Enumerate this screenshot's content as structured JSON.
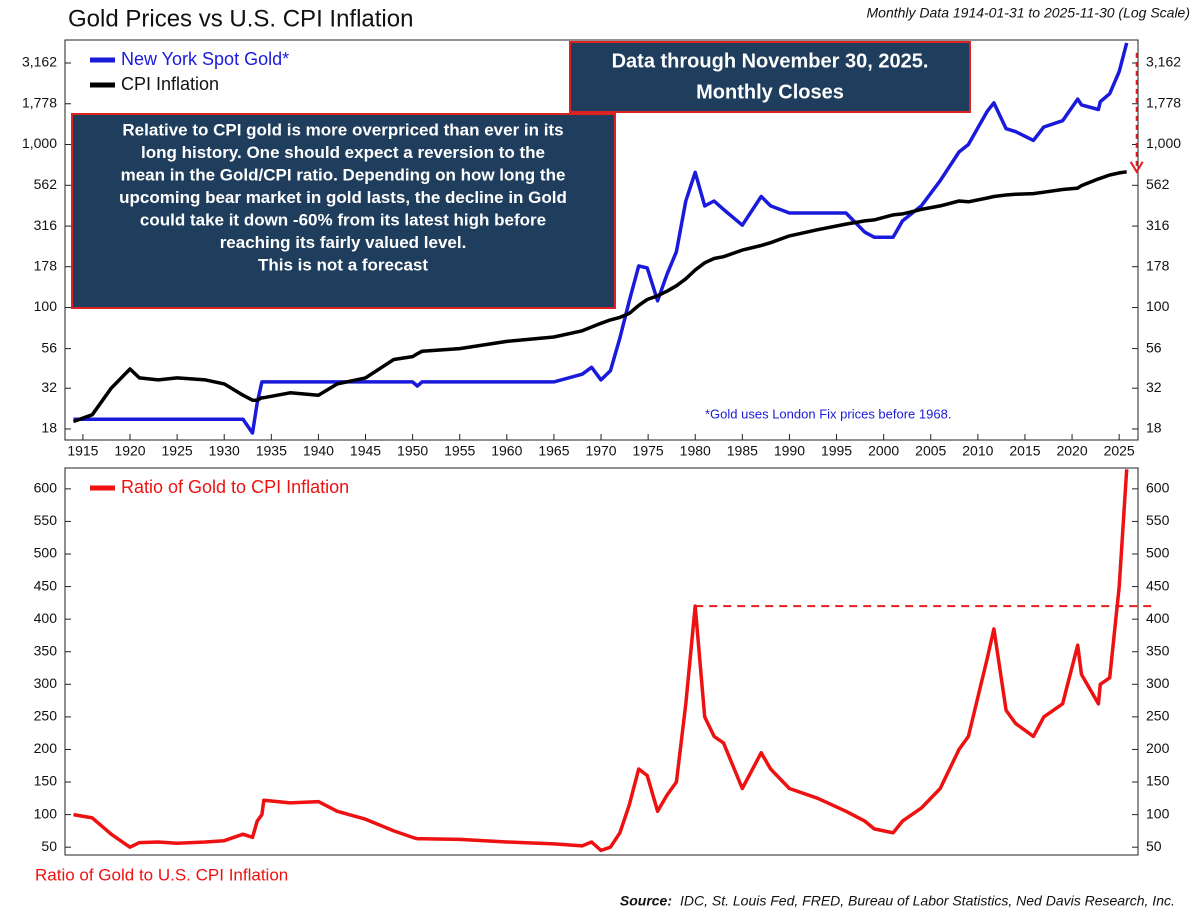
{
  "chart_data": [
    {
      "type": "line",
      "title": "Gold Prices vs U.S. CPI Inflation",
      "subtitle": "Monthly Data 1914-01-31 to 2025-11-30 (Log Scale)",
      "log_scale": true,
      "grid": false,
      "x": [
        1914,
        1916,
        1918,
        1920,
        1921,
        1923,
        1925,
        1928,
        1930,
        1932,
        1933,
        1933.5,
        1934,
        1934.2,
        1937,
        1940,
        1942,
        1945,
        1948,
        1950,
        1950.5,
        1951,
        1955,
        1960,
        1965,
        1968,
        1969,
        1970,
        1971,
        1972,
        1973,
        1974,
        1974.9,
        1976,
        1977,
        1978,
        1979,
        1980,
        1981,
        1982,
        1983,
        1985,
        1987,
        1988,
        1990,
        1993,
        1996,
        1998,
        1999,
        2001,
        2002,
        2004,
        2006,
        2008,
        2009,
        2011,
        2011.7,
        2013,
        2014,
        2015.9,
        2017,
        2019,
        2020.6,
        2021,
        2022.8,
        2023,
        2024,
        2025,
        2025.8
      ],
      "xlim": [
        1913.1,
        2027
      ],
      "xticks": [
        1915,
        1920,
        1925,
        1930,
        1935,
        1940,
        1945,
        1950,
        1955,
        1960,
        1965,
        1970,
        1975,
        1980,
        1985,
        1990,
        1995,
        2000,
        2005,
        2010,
        2015,
        2020,
        2025
      ],
      "ylim": [
        15.4,
        4375
      ],
      "yticks": [
        18,
        32,
        56,
        100,
        178,
        316,
        562,
        {
          "value": 1000,
          "label": "1,000"
        },
        {
          "value": 1778,
          "label": "1,778"
        },
        {
          "value": 3162,
          "label": "3,162"
        }
      ],
      "series": [
        {
          "name": "New York Spot Gold*",
          "color": "#1a1adb",
          "values": [
            20.67,
            20.67,
            20.67,
            20.67,
            20.67,
            20.67,
            20.67,
            20.67,
            20.67,
            20.67,
            17,
            26,
            35,
            35,
            35,
            35,
            35,
            35,
            35,
            35,
            33,
            35,
            35,
            35,
            35,
            39,
            43,
            36,
            41,
            65,
            110,
            180,
            175,
            110,
            160,
            220,
            450,
            675,
            420,
            450,
            400,
            320,
            480,
            420,
            380,
            380,
            380,
            290,
            270,
            270,
            340,
            420,
            600,
            900,
            1000,
            1600,
            1800,
            1250,
            1200,
            1060,
            1280,
            1400,
            1900,
            1750,
            1640,
            1830,
            2050,
            2800,
            4200
          ]
        },
        {
          "name": "CPI Inflation",
          "color": "#000000",
          "values": [
            20,
            22,
            32,
            42,
            37,
            36,
            37,
            36,
            34,
            29,
            27,
            27,
            28,
            28,
            30,
            29,
            34,
            37,
            48,
            50,
            52,
            54,
            56,
            62,
            66,
            72,
            76,
            80,
            84,
            87,
            92,
            103,
            112,
            118,
            126,
            136,
            150,
            170,
            188,
            200,
            205,
            225,
            240,
            250,
            275,
            300,
            325,
            340,
            345,
            370,
            375,
            400,
            420,
            450,
            445,
            470,
            480,
            490,
            495,
            500,
            510,
            530,
            540,
            560,
            615,
            620,
            650,
            670,
            680
          ]
        }
      ],
      "annotations": {
        "data_box": [
          "Data through November 30, 2025.",
          "Monthly Closes"
        ],
        "comment_box": [
          "Relative to CPI gold is more overpriced than ever in its",
          "long history.  One should expect a reversion to the",
          "mean in the Gold/CPI ratio. Depending on how long the",
          "upcoming bear market in gold lasts, the decline in Gold",
          "could take it down -60% from its latest high before",
          "reaching its fairly valued level.",
          "This is not a forecast"
        ],
        "note": "*Gold uses London Fix prices before 1968."
      }
    },
    {
      "type": "line",
      "grid": false,
      "x": [
        1914,
        1916,
        1918,
        1920,
        1921,
        1923,
        1925,
        1928,
        1930,
        1932,
        1933,
        1933.5,
        1934,
        1934.2,
        1937,
        1940,
        1942,
        1945,
        1948,
        1950,
        1950.5,
        1951,
        1955,
        1960,
        1965,
        1968,
        1969,
        1970,
        1971,
        1972,
        1973,
        1974,
        1974.9,
        1976,
        1977,
        1978,
        1979,
        1980,
        1981,
        1982,
        1983,
        1985,
        1987,
        1988,
        1990,
        1993,
        1996,
        1998,
        1999,
        2001,
        2002,
        2004,
        2006,
        2008,
        2009,
        2011,
        2011.7,
        2013,
        2014,
        2015.9,
        2017,
        2019,
        2020.6,
        2021,
        2022.8,
        2023,
        2024,
        2025,
        2025.8
      ],
      "xlim": [
        1913.1,
        2027
      ],
      "ylim": [
        38,
        632
      ],
      "yticks": [
        50,
        100,
        150,
        200,
        250,
        300,
        350,
        400,
        450,
        500,
        550,
        600
      ],
      "reference_line": 420,
      "series": [
        {
          "name": "Ratio of Gold to CPI Inflation",
          "color": "#ee1111",
          "values": [
            100,
            95,
            70,
            50,
            57,
            58,
            56,
            58,
            60,
            70,
            65,
            90,
            100,
            122,
            118,
            120,
            105,
            93,
            75,
            65,
            63,
            63,
            62,
            58,
            55,
            52,
            58,
            45,
            50,
            72,
            115,
            170,
            160,
            105,
            130,
            150,
            270,
            420,
            250,
            220,
            210,
            140,
            195,
            170,
            140,
            125,
            105,
            90,
            78,
            72,
            90,
            110,
            140,
            200,
            220,
            340,
            385,
            260,
            240,
            220,
            250,
            270,
            360,
            315,
            270,
            300,
            310,
            450,
            630
          ]
        }
      ],
      "x_label": "Ratio of Gold to U.S. CPI Inflation",
      "source": {
        "label": "Source:",
        "text": "IDC, St. Louis Fed, FRED, Bureau of Labor Statistics, Ned Davis Research, Inc."
      }
    }
  ]
}
